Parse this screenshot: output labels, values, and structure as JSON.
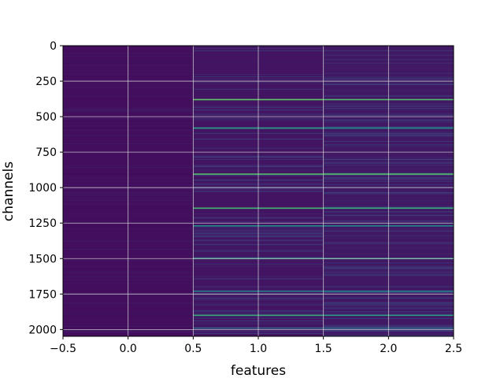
{
  "chart_data": {
    "type": "heatmap",
    "title": "",
    "xlabel": "features",
    "ylabel": "channels",
    "xlim": [
      -0.5,
      2.5
    ],
    "ylim": [
      2048,
      0
    ],
    "y_inverted": true,
    "grid": true,
    "colormap": "viridis",
    "x_ticks": [
      {
        "value": -0.5,
        "label": "−0.5"
      },
      {
        "value": 0.0,
        "label": "0.0"
      },
      {
        "value": 0.5,
        "label": "0.5"
      },
      {
        "value": 1.0,
        "label": "1.0"
      },
      {
        "value": 1.5,
        "label": "1.5"
      },
      {
        "value": 2.0,
        "label": "2.0"
      },
      {
        "value": 2.5,
        "label": "2.5"
      }
    ],
    "y_ticks": [
      {
        "value": 0,
        "label": "0"
      },
      {
        "value": 250,
        "label": "250"
      },
      {
        "value": 500,
        "label": "500"
      },
      {
        "value": 750,
        "label": "750"
      },
      {
        "value": 1000,
        "label": "1000"
      },
      {
        "value": 1250,
        "label": "1250"
      },
      {
        "value": 1500,
        "label": "1500"
      },
      {
        "value": 1750,
        "label": "1750"
      },
      {
        "value": 2000,
        "label": "2000"
      }
    ],
    "columns": [
      {
        "feature": 0,
        "x_range": [
          -0.5,
          0.5
        ],
        "base_value": 0.04
      },
      {
        "feature": 1,
        "x_range": [
          0.5,
          1.5
        ],
        "base_value": 0.06
      },
      {
        "feature": 2,
        "x_range": [
          1.5,
          2.5
        ],
        "base_value": 0.07
      }
    ],
    "highlight_rows": [
      {
        "channel": 380,
        "values": [
          0.03,
          0.75,
          0.7
        ]
      },
      {
        "channel": 580,
        "values": [
          0.03,
          0.55,
          0.5
        ]
      },
      {
        "channel": 905,
        "values": [
          0.03,
          0.7,
          0.7
        ]
      },
      {
        "channel": 1145,
        "values": [
          0.03,
          0.65,
          0.6
        ]
      },
      {
        "channel": 1270,
        "values": [
          0.03,
          0.5,
          0.45
        ]
      },
      {
        "channel": 1500,
        "values": [
          0.03,
          0.55,
          0.55
        ]
      },
      {
        "channel": 1730,
        "values": [
          0.03,
          0.45,
          0.45
        ]
      },
      {
        "channel": 1900,
        "values": [
          0.03,
          0.6,
          0.55
        ]
      },
      {
        "channel": 1990,
        "values": [
          0.03,
          0.35,
          0.35
        ]
      }
    ],
    "colors": {
      "background": "#ffffff",
      "grid": "#d9d9d9",
      "axes": "#000000"
    }
  }
}
